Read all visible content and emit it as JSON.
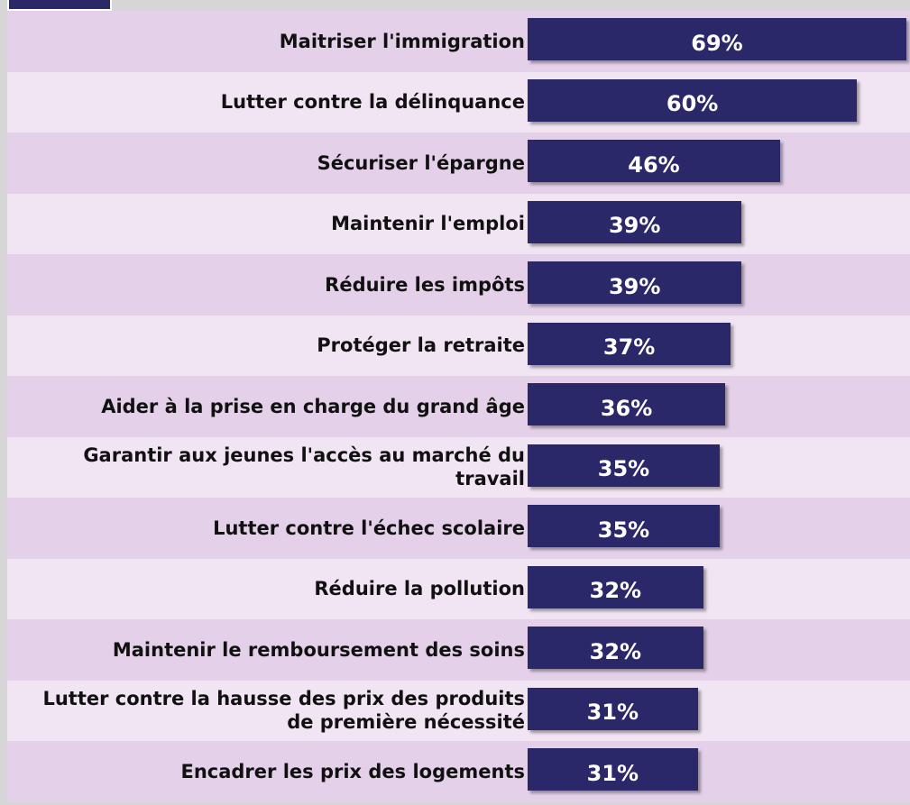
{
  "chart_data": {
    "type": "bar",
    "orientation": "horizontal",
    "categories": [
      "Maitriser l'immigration",
      "Lutter contre la délinquance",
      "Sécuriser l'épargne",
      "Maintenir l'emploi",
      "Réduire les impôts",
      "Protéger la retraite",
      "Aider à la prise en charge du grand âge",
      "Garantir aux jeunes l'accès au marché du travail",
      "Lutter contre l'échec scolaire",
      "Réduire la pollution",
      "Maintenir le remboursement des soins",
      "Lutter contre la hausse des prix des produits de première nécessité",
      "Encadrer les prix des logements"
    ],
    "values": [
      69,
      60,
      46,
      39,
      39,
      37,
      36,
      35,
      35,
      32,
      32,
      31,
      31
    ],
    "value_labels": [
      "69%",
      "60%",
      "46%",
      "39%",
      "39%",
      "37%",
      "36%",
      "35%",
      "35%",
      "32%",
      "32%",
      "31%",
      "31%"
    ],
    "color": "#2a2868"
  }
}
